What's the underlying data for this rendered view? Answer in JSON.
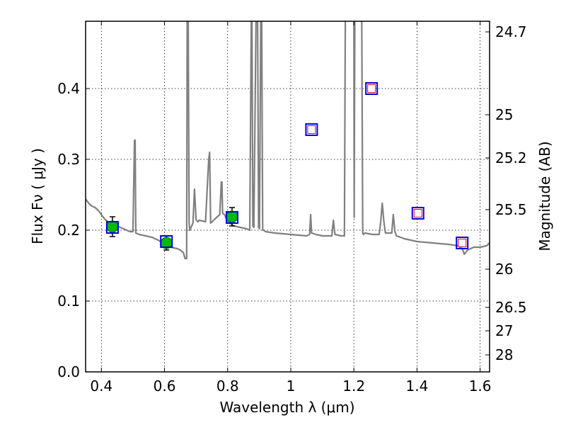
{
  "chart_data": {
    "type": "scatter",
    "xlabel": "Wavelength  λ (μm)",
    "ylabel": "Flux  Fν  ( μJy )",
    "ylabel_right": "Magnitude (AB)",
    "xlim": [
      0.35,
      1.63
    ],
    "ylim": [
      0.0,
      0.495
    ],
    "grid": true,
    "x_ticks": [
      0.4,
      0.6,
      0.8,
      1.0,
      1.2,
      1.4,
      1.6
    ],
    "x_tick_labels": [
      "0.4",
      "0.6",
      "0.8",
      "1",
      "1.2",
      "1.4",
      "1.6"
    ],
    "y_ticks": [
      0.0,
      0.1,
      0.2,
      0.3,
      0.4
    ],
    "y_tick_labels": [
      "0.0",
      "0.1",
      "0.2",
      "0.3",
      "0.4"
    ],
    "right_ticks": [
      {
        "label": "24.7",
        "flux": 0.48
      },
      {
        "label": "25",
        "flux": 0.363
      },
      {
        "label": "25.2",
        "flux": 0.302
      },
      {
        "label": "25.5",
        "flux": 0.229
      },
      {
        "label": "26",
        "flux": 0.145
      },
      {
        "label": "26.5",
        "flux": 0.091
      },
      {
        "label": "27",
        "flux": 0.058
      },
      {
        "label": "28",
        "flux": 0.024
      }
    ],
    "series": [
      {
        "kind": "spectrum",
        "color": "#808080",
        "x": [
          0.35,
          0.36,
          0.37,
          0.38,
          0.39,
          0.4,
          0.41,
          0.42,
          0.43,
          0.44,
          0.45,
          0.46,
          0.47,
          0.48,
          0.49,
          0.5,
          0.505,
          0.507,
          0.509,
          0.52,
          0.54,
          0.56,
          0.58,
          0.6,
          0.62,
          0.64,
          0.65,
          0.66,
          0.665,
          0.67,
          0.672,
          0.675,
          0.678,
          0.68,
          0.69,
          0.695,
          0.7,
          0.705,
          0.71,
          0.73,
          0.74,
          0.743,
          0.746,
          0.76,
          0.775,
          0.78,
          0.782,
          0.784,
          0.79,
          0.8,
          0.82,
          0.84,
          0.86,
          0.87,
          0.875,
          0.877,
          0.88,
          0.883,
          0.89,
          0.895,
          0.898,
          0.901,
          0.905,
          0.908,
          0.911,
          0.915,
          0.92,
          0.95,
          1.0,
          1.05,
          1.06,
          1.063,
          1.066,
          1.08,
          1.1,
          1.13,
          1.135,
          1.14,
          1.16,
          1.17,
          1.173,
          1.176,
          1.178,
          1.18,
          1.2,
          1.201,
          1.203,
          1.205,
          1.21,
          1.22,
          1.225,
          1.228,
          1.23,
          1.235,
          1.26,
          1.28,
          1.285,
          1.29,
          1.295,
          1.3,
          1.32,
          1.325,
          1.33,
          1.335,
          1.36,
          1.4,
          1.45,
          1.5,
          1.53,
          1.54,
          1.545,
          1.55,
          1.56,
          1.58,
          1.6,
          1.62,
          1.63
        ],
        "y": [
          0.244,
          0.238,
          0.234,
          0.232,
          0.228,
          0.222,
          0.216,
          0.212,
          0.21,
          0.208,
          0.206,
          0.204,
          0.202,
          0.2,
          0.198,
          0.198,
          0.327,
          0.327,
          0.196,
          0.194,
          0.192,
          0.19,
          0.186,
          0.18,
          0.176,
          0.174,
          0.172,
          0.168,
          0.16,
          0.16,
          0.5,
          0.5,
          0.21,
          0.2,
          0.21,
          0.258,
          0.215,
          0.212,
          0.214,
          0.212,
          0.3,
          0.31,
          0.21,
          0.216,
          0.222,
          0.268,
          0.268,
          0.224,
          0.222,
          0.212,
          0.206,
          0.204,
          0.202,
          0.2,
          0.5,
          0.5,
          0.206,
          0.204,
          0.5,
          0.5,
          0.204,
          0.202,
          0.5,
          0.5,
          0.2,
          0.2,
          0.198,
          0.196,
          0.194,
          0.192,
          0.194,
          0.222,
          0.196,
          0.194,
          0.192,
          0.192,
          0.214,
          0.194,
          0.192,
          0.192,
          0.5,
          0.5,
          0.5,
          0.5,
          0.5,
          0.218,
          0.5,
          0.5,
          0.5,
          0.5,
          0.5,
          0.196,
          0.194,
          0.196,
          0.194,
          0.194,
          0.212,
          0.238,
          0.212,
          0.196,
          0.196,
          0.222,
          0.198,
          0.192,
          0.188,
          0.184,
          0.182,
          0.18,
          0.178,
          0.175,
          0.172,
          0.166,
          0.172,
          0.176,
          0.176,
          0.178,
          0.182
        ]
      },
      {
        "kind": "observed",
        "marker": "circle",
        "color": "#00bb00",
        "points": [
          {
            "x": 0.435,
            "y": 0.205,
            "err": 0.014
          },
          {
            "x": 0.606,
            "y": 0.182,
            "err": 0.01
          },
          {
            "x": 0.814,
            "y": 0.219,
            "err": 0.013
          }
        ]
      },
      {
        "kind": "model",
        "marker": "square",
        "color": "#0000ee",
        "points": [
          {
            "x": 0.435,
            "y": 0.204
          },
          {
            "x": 0.606,
            "y": 0.184
          },
          {
            "x": 0.814,
            "y": 0.218
          },
          {
            "x": 1.066,
            "y": 0.342
          },
          {
            "x": 1.256,
            "y": 0.4
          },
          {
            "x": 1.403,
            "y": 0.224
          },
          {
            "x": 1.543,
            "y": 0.182
          }
        ]
      },
      {
        "kind": "upper-limit",
        "marker": "square",
        "color": "#ee0000",
        "points": [
          {
            "x": 1.066,
            "y": 0.342
          },
          {
            "x": 1.256,
            "y": 0.4
          },
          {
            "x": 1.403,
            "y": 0.224
          },
          {
            "x": 1.543,
            "y": 0.182
          }
        ]
      }
    ]
  }
}
